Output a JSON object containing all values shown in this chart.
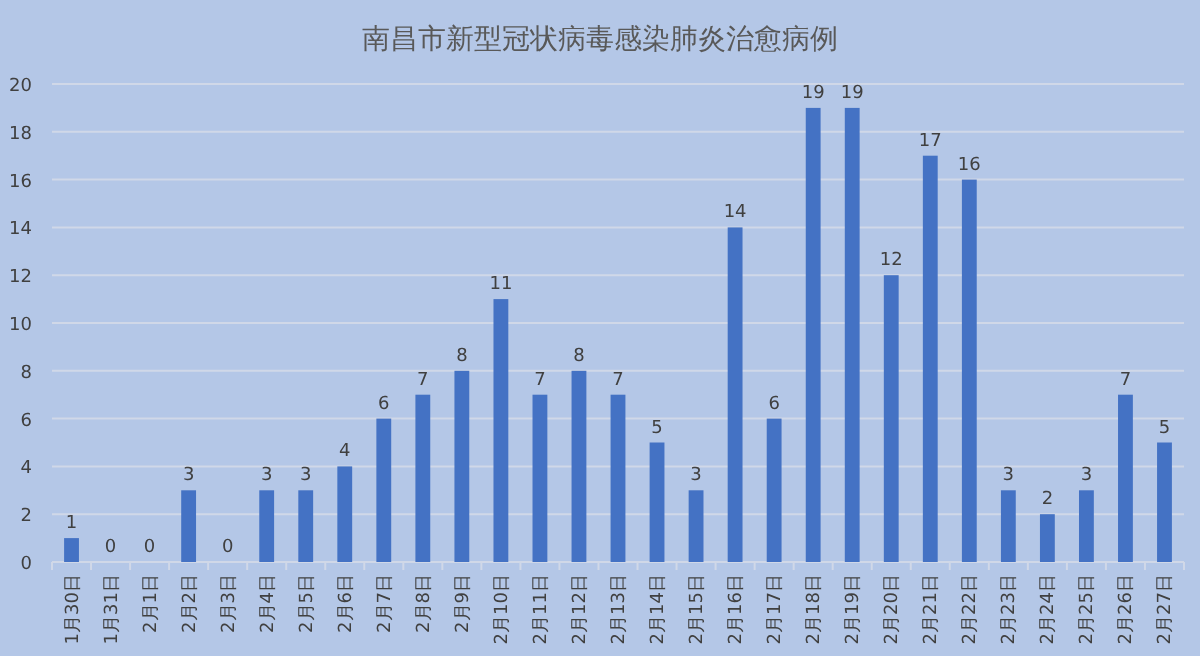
{
  "chart_data": {
    "type": "bar",
    "title": "南昌市新型冠状病毒感染肺炎治愈病例",
    "categories": [
      "1月30日",
      "1月31日",
      "2月1日",
      "2月2日",
      "2月3日",
      "2月4日",
      "2月5日",
      "2月6日",
      "2月7日",
      "2月8日",
      "2月9日",
      "2月10日",
      "2月11日",
      "2月12日",
      "2月13日",
      "2月14日",
      "2月15日",
      "2月16日",
      "2月17日",
      "2月18日",
      "2月19日",
      "2月20日",
      "2月21日",
      "2月22日",
      "2月23日",
      "2月24日",
      "2月25日",
      "2月26日",
      "2月27日"
    ],
    "values": [
      1,
      0,
      0,
      3,
      0,
      3,
      3,
      4,
      6,
      7,
      8,
      11,
      7,
      8,
      7,
      5,
      3,
      14,
      6,
      19,
      19,
      12,
      17,
      16,
      3,
      2,
      3,
      7,
      5
    ],
    "color": "#4472c4",
    "ylim": [
      0,
      20
    ],
    "yticks": [
      0,
      2,
      4,
      6,
      8,
      10,
      12,
      14,
      16,
      18,
      20
    ],
    "grid": "y",
    "data_labels": true
  }
}
